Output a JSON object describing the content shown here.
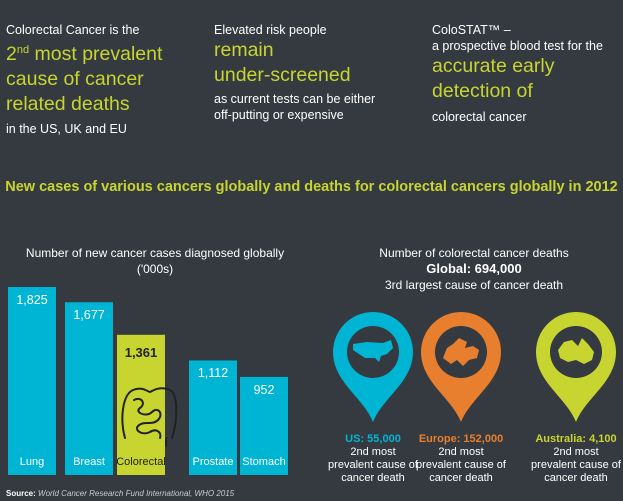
{
  "top": {
    "col1": {
      "intro": "Colorectal Cancer is the",
      "ord_num": "2",
      "ord_sup": "nd",
      "hl_line1": " most prevalent",
      "hl_line2": "cause of cancer",
      "hl_line3": "related deaths",
      "foot": "in the US, UK and EU"
    },
    "col2": {
      "intro": "Elevated risk people",
      "hl_line1": "remain",
      "hl_line2": "under-screened",
      "foot_line1": "as current tests can be either",
      "foot_line2": "off-putting or expensive"
    },
    "col3": {
      "intro_line1": "ColoSTAT™ –",
      "intro_line2": "a prospective blood test for the",
      "hl_line1": "accurate early",
      "hl_line2": "detection of",
      "foot": "colorectal cancer"
    }
  },
  "headline": "New cases of various cancers globally and deaths for colorectal cancers globally in 2012",
  "colors": {
    "accent": "#c8d530",
    "cyan": "#00b5d3",
    "orange": "#e87f2e",
    "bg": "#343a40"
  },
  "chart_data": [
    {
      "type": "bar",
      "title_line1": "Number of new cancer cases diagnosed globally",
      "title_line2": "('000s)",
      "categories": [
        "Lung",
        "Breast",
        "Colorectal",
        "Prostate",
        "Stomach"
      ],
      "values": [
        1825,
        1677,
        1361,
        1112,
        952
      ],
      "value_labels": [
        "1,825",
        "1,677",
        "1,361",
        "1,112",
        "952"
      ],
      "highlight": "Colorectal",
      "ylim": [
        0,
        1825
      ]
    },
    {
      "type": "table",
      "title": "Number of colorectal cancer deaths",
      "global_label": "Global: 694,000",
      "rank_note": "3rd largest cause of cancer death",
      "regions": [
        {
          "name": "US: 55,000",
          "map_icon": "usa-map-icon",
          "color": "#00b5d3",
          "note_line1": "2nd most",
          "note_line2": "prevalent cause of",
          "note_line3": "cancer death"
        },
        {
          "name": "Europe: 152,000",
          "map_icon": "europe-map-icon",
          "color": "#e87f2e",
          "note_line1": "2nd most",
          "note_line2": "prevalent cause of",
          "note_line3": "cancer death"
        },
        {
          "name": "Australia: 4,100",
          "map_icon": "australia-map-icon",
          "color": "#c8d530",
          "note_line1": "2nd most",
          "note_line2": "prevalent cause of",
          "note_line3": "cancer death"
        }
      ]
    }
  ],
  "source": {
    "label": "Source:",
    "text": " World Cancer Research Fund International, WHO 2015"
  }
}
